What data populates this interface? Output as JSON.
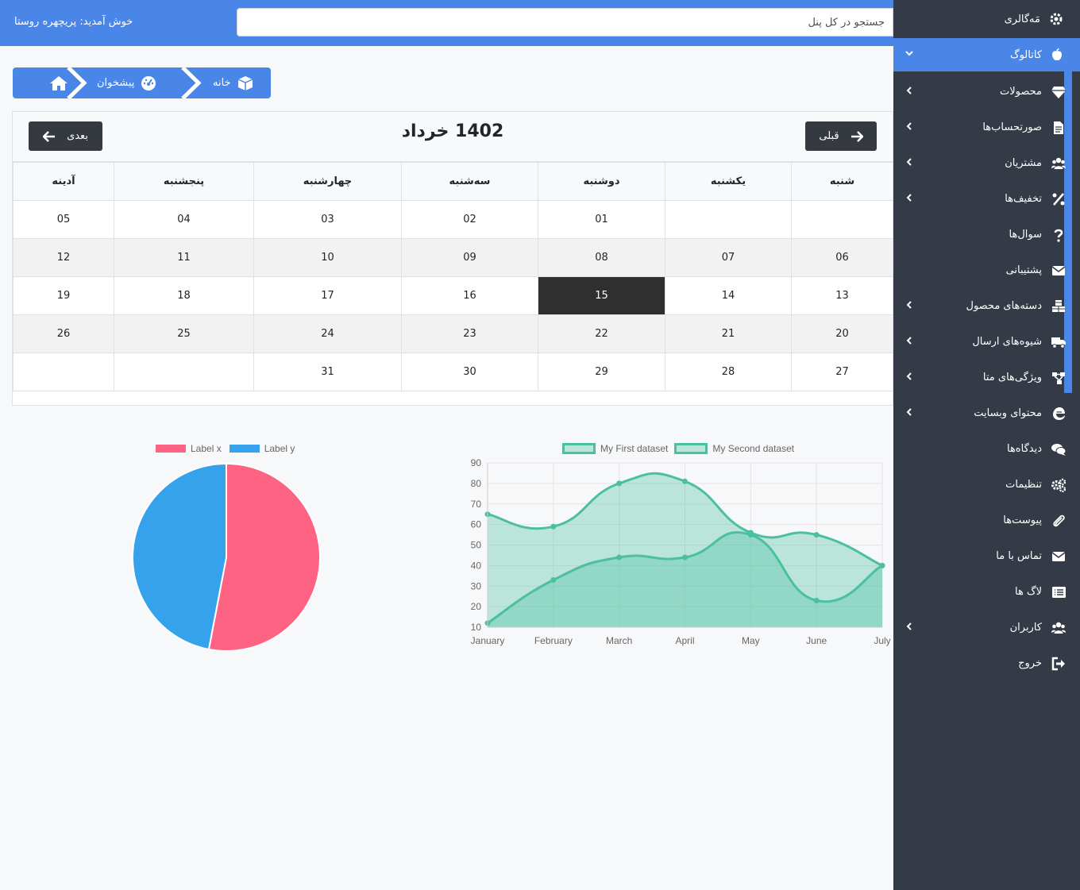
{
  "topbar": {
    "welcome": "خوش آمدید: پریچهره روستا",
    "search_placeholder": "جستجو در کل پنل"
  },
  "sidebar": {
    "brand": "مَه‌گالری",
    "catalog": "کاتالوگ",
    "items": [
      {
        "label": "محصولات",
        "icon": "gem-icon",
        "chevron": true
      },
      {
        "label": "صورتحساب‌ها",
        "icon": "file-invoice-icon",
        "chevron": true
      },
      {
        "label": "مشتریان",
        "icon": "users-icon",
        "chevron": true
      },
      {
        "label": "تخفیف‌ها",
        "icon": "percent-icon",
        "chevron": true
      },
      {
        "label": "سوال‌ها",
        "icon": "question-icon",
        "chevron": false
      },
      {
        "label": "پشتیبانی",
        "icon": "envelope-icon",
        "chevron": false
      },
      {
        "label": "دسته‌های محصول",
        "icon": "cubes-icon",
        "chevron": true
      },
      {
        "label": "شیوه‌های ارسال",
        "icon": "truck-icon",
        "chevron": true
      },
      {
        "label": "ویژگی‌های متا",
        "icon": "sitemap-icon",
        "chevron": true
      },
      {
        "label": "محتوای وبسایت",
        "icon": "edge-icon",
        "chevron": true
      },
      {
        "label": "دیدگاه‌ها",
        "icon": "comments-icon",
        "chevron": false
      },
      {
        "label": "تنظیمات",
        "icon": "cogs-icon",
        "chevron": false
      },
      {
        "label": "پیوست‌ها",
        "icon": "paperclip-icon",
        "chevron": false
      },
      {
        "label": "تماس با ما",
        "icon": "envelope-icon",
        "chevron": false
      },
      {
        "label": "لاگ ها",
        "icon": "list-icon",
        "chevron": false
      },
      {
        "label": "کاربران",
        "icon": "users-icon",
        "chevron": true
      },
      {
        "label": "خروج",
        "icon": "sign-out-icon",
        "chevron": false
      }
    ]
  },
  "breadcrumb": {
    "home": "خانه",
    "dashboard": "پیشخوان"
  },
  "calendar": {
    "title": "1402 خرداد",
    "prev_label": "قبلی",
    "next_label": "بعدی",
    "weekdays": [
      "شنبه",
      "یکشنبه",
      "دوشنبه",
      "سه‌شنبه",
      "چهارشنبه",
      "پنجشنبه",
      "آدینه"
    ],
    "weeks": [
      [
        "",
        "",
        "01",
        "02",
        "03",
        "04",
        "05"
      ],
      [
        "06",
        "07",
        "08",
        "09",
        "10",
        "11",
        "12"
      ],
      [
        "13",
        "14",
        "15",
        "16",
        "17",
        "18",
        "19"
      ],
      [
        "20",
        "21",
        "22",
        "23",
        "24",
        "25",
        "26"
      ],
      [
        "27",
        "28",
        "29",
        "30",
        "31",
        "",
        ""
      ]
    ],
    "today": "15"
  },
  "chart_data": [
    {
      "type": "pie",
      "labels": [
        "Label x",
        "Label y"
      ],
      "values": [
        53,
        47
      ],
      "colors": [
        "#ff6384",
        "#36a2eb"
      ]
    },
    {
      "type": "area",
      "categories": [
        "January",
        "February",
        "March",
        "April",
        "May",
        "June",
        "July"
      ],
      "series": [
        {
          "name": "My First dataset",
          "values": [
            65,
            59,
            80,
            81,
            56,
            55,
            40
          ]
        },
        {
          "name": "My Second dataset",
          "values": [
            12,
            33,
            44,
            44,
            55,
            23,
            40
          ]
        }
      ],
      "ylim": [
        10,
        90
      ],
      "yticks": [
        10,
        20,
        30,
        40,
        50,
        60,
        70,
        80,
        90
      ],
      "color": "#4bc0a0",
      "grid": true,
      "legend": "top"
    }
  ]
}
